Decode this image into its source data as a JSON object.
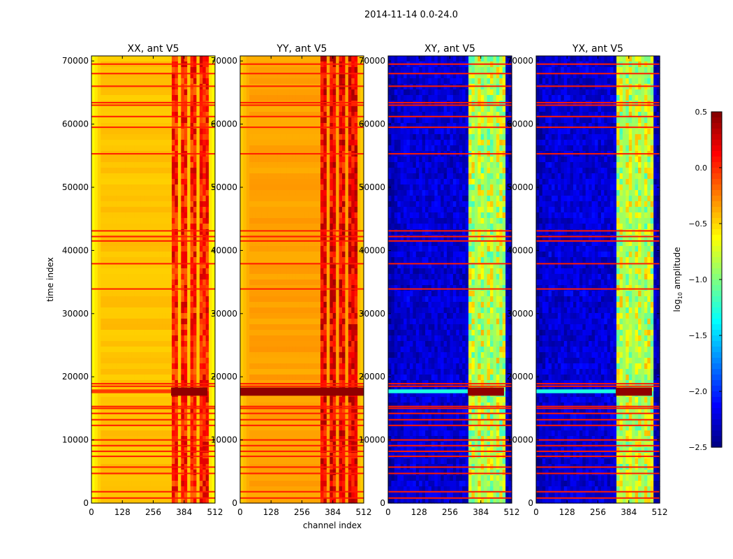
{
  "chart_data": {
    "type": "heatmap",
    "suptitle": "2014-11-14 0.0-24.0",
    "xlabel": "channel index",
    "ylabel": "time index",
    "xlim": [
      0,
      512
    ],
    "ylim": [
      0,
      70800
    ],
    "xticks": [
      "0",
      "128",
      "256",
      "384",
      "512"
    ],
    "xtick_values": [
      0,
      128,
      256,
      384,
      512
    ],
    "yticks": [
      "0",
      "10000",
      "20000",
      "30000",
      "40000",
      "50000",
      "60000",
      "70000"
    ],
    "ytick_values": [
      0,
      10000,
      20000,
      30000,
      40000,
      50000,
      60000,
      70000
    ],
    "colormap": "jet",
    "colorbar": {
      "label_prefix": "log",
      "label_sub": "10",
      "label_suffix": " amplitude",
      "range": [
        -2.5,
        0.5
      ],
      "ticks": [
        "0.5",
        "0.0",
        "−0.5",
        "−1.0",
        "−1.5",
        "−2.0",
        "−2.5"
      ],
      "tick_values": [
        0.5,
        0.0,
        -0.5,
        -1.0,
        -1.5,
        -2.0,
        -2.5
      ]
    },
    "panels": [
      {
        "title": "XX, ant V5",
        "kind": "auto",
        "base": -0.45,
        "edge": -0.65,
        "band": 0.05
      },
      {
        "title": "YY, ant V5",
        "kind": "auto",
        "base": -0.35,
        "edge": -0.5,
        "band": 0.15
      },
      {
        "title": "XY, ant V5",
        "kind": "cross",
        "base": -2.25,
        "edge": -2.4,
        "band": -0.8
      },
      {
        "title": "YX, ant V5",
        "kind": "cross",
        "base": -2.25,
        "edge": -2.4,
        "band": -0.8
      }
    ],
    "band_channels": [
      330,
      480
    ],
    "band_gap_channels": [
      360,
      400,
      440
    ],
    "flagged_time_rows": [
      800,
      1800,
      4700,
      5700,
      7400,
      8200,
      9100,
      10000,
      12300,
      13200,
      14200,
      15000,
      15300,
      18500,
      18900,
      33900,
      37900,
      41500,
      42200,
      43100,
      55300,
      59500,
      61200,
      63000,
      63400,
      66000,
      68000,
      69500
    ],
    "high_amplitude_time_range": [
      17000,
      18300
    ]
  }
}
